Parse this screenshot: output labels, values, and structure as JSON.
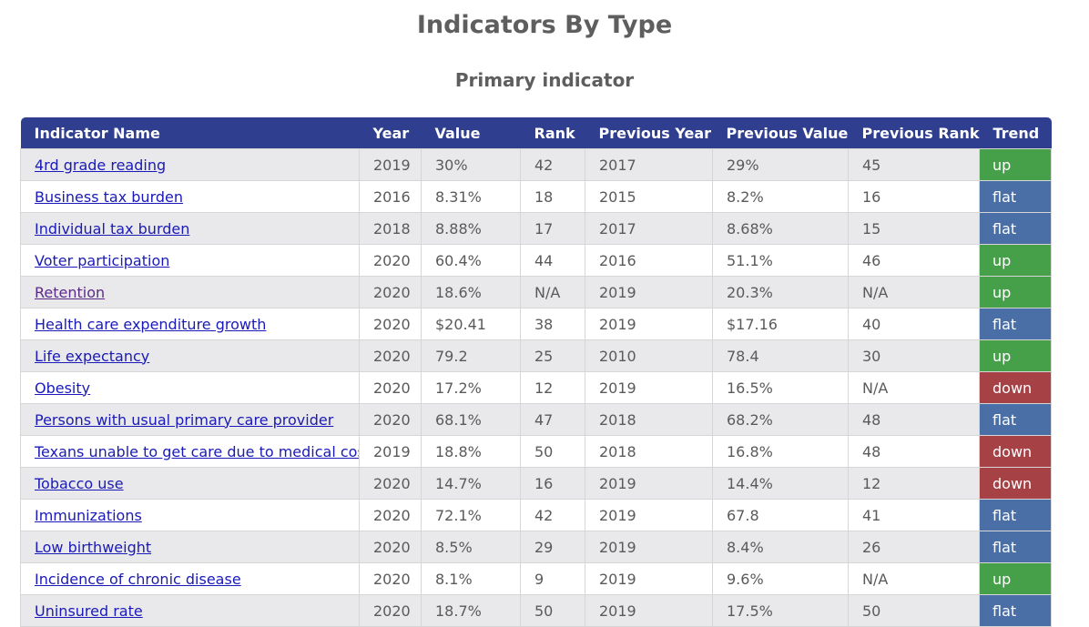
{
  "page": {
    "title": "Indicators By Type",
    "section_title": "Primary indicator"
  },
  "table": {
    "headers": [
      "Indicator Name",
      "Year",
      "Value",
      "Rank",
      "Previous Year",
      "Previous Value",
      "Previous Rank",
      "Trend"
    ],
    "rows": [
      {
        "name": "4rd grade reading",
        "year": "2019",
        "value": "30%",
        "rank": "42",
        "prev_year": "2017",
        "prev_value": "29%",
        "prev_rank": "45",
        "trend": "up"
      },
      {
        "name": "Business tax burden",
        "year": "2016",
        "value": "8.31%",
        "rank": "18",
        "prev_year": "2015",
        "prev_value": "8.2%",
        "prev_rank": "16",
        "trend": "flat"
      },
      {
        "name": "Individual tax burden",
        "year": "2018",
        "value": "8.88%",
        "rank": "17",
        "prev_year": "2017",
        "prev_value": "8.68%",
        "prev_rank": "15",
        "trend": "flat"
      },
      {
        "name": "Voter participation",
        "year": "2020",
        "value": "60.4%",
        "rank": "44",
        "prev_year": "2016",
        "prev_value": "51.1%",
        "prev_rank": "46",
        "trend": "up"
      },
      {
        "name": "Retention",
        "year": "2020",
        "value": "18.6%",
        "rank": "N/A",
        "prev_year": "2019",
        "prev_value": "20.3%",
        "prev_rank": "N/A",
        "trend": "up"
      },
      {
        "name": "Health care expenditure growth",
        "year": "2020",
        "value": "$20.41",
        "rank": "38",
        "prev_year": "2019",
        "prev_value": "$17.16",
        "prev_rank": "40",
        "trend": "flat"
      },
      {
        "name": "Life expectancy",
        "year": "2020",
        "value": "79.2",
        "rank": "25",
        "prev_year": "2010",
        "prev_value": "78.4",
        "prev_rank": "30",
        "trend": "up"
      },
      {
        "name": "Obesity",
        "year": "2020",
        "value": "17.2%",
        "rank": "12",
        "prev_year": "2019",
        "prev_value": "16.5%",
        "prev_rank": "N/A",
        "trend": "down"
      },
      {
        "name": "Persons with usual primary care provider",
        "year": "2020",
        "value": "68.1%",
        "rank": "47",
        "prev_year": "2018",
        "prev_value": "68.2%",
        "prev_rank": "48",
        "trend": "flat"
      },
      {
        "name": "Texans unable to get care due to medical cost",
        "year": "2019",
        "value": "18.8%",
        "rank": "50",
        "prev_year": "2018",
        "prev_value": "16.8%",
        "prev_rank": "48",
        "trend": "down"
      },
      {
        "name": "Tobacco use",
        "year": "2020",
        "value": "14.7%",
        "rank": "16",
        "prev_year": "2019",
        "prev_value": "14.4%",
        "prev_rank": "12",
        "trend": "down"
      },
      {
        "name": "Immunizations",
        "year": "2020",
        "value": "72.1%",
        "rank": "42",
        "prev_year": "2019",
        "prev_value": "67.8",
        "prev_rank": "41",
        "trend": "flat"
      },
      {
        "name": "Low birthweight",
        "year": "2020",
        "value": "8.5%",
        "rank": "29",
        "prev_year": "2019",
        "prev_value": "8.4%",
        "prev_rank": "26",
        "trend": "flat"
      },
      {
        "name": "Incidence of chronic disease",
        "year": "2020",
        "value": "8.1%",
        "rank": "9",
        "prev_year": "2019",
        "prev_value": "9.6%",
        "prev_rank": "N/A",
        "trend": "up"
      },
      {
        "name": "Uninsured rate",
        "year": "2020",
        "value": "18.7%",
        "rank": "50",
        "prev_year": "2019",
        "prev_value": "17.5%",
        "prev_rank": "50",
        "trend": "flat"
      }
    ]
  },
  "colors": {
    "header_bg": "#2f3e8e",
    "trend_up": "#45a049",
    "trend_flat": "#4a6ea6",
    "trend_down": "#a64246",
    "link": "#1a1ab8",
    "visited_link": "#5b2a86"
  }
}
